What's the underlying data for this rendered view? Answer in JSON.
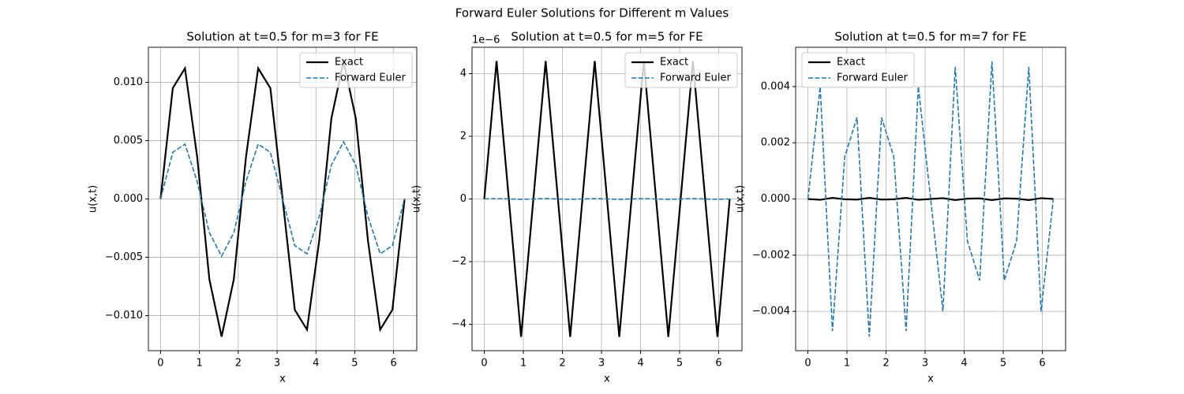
{
  "title": "Forward Euler Solutions for Different m Values",
  "chart_data": [
    {
      "type": "line",
      "title": "Solution at t=0.5 for m=3 for FE",
      "x_label": "x",
      "y_label": "u(x,t)",
      "x": [
        0,
        0.314,
        0.628,
        0.942,
        1.257,
        1.571,
        1.885,
        2.199,
        2.513,
        2.827,
        3.142,
        3.456,
        3.77,
        4.084,
        4.398,
        4.712,
        5.027,
        5.341,
        5.655,
        5.969,
        6.283
      ],
      "series": [
        {
          "name": "Exact",
          "color": "#000000",
          "style": "solid",
          "values": [
            0,
            0.0095,
            0.0112,
            0.0036,
            -0.0069,
            -0.0118,
            -0.0069,
            0.0036,
            0.0112,
            0.0095,
            0,
            -0.0095,
            -0.0112,
            -0.0036,
            0.0069,
            0.0118,
            0.0069,
            -0.0036,
            -0.0112,
            -0.0095,
            0
          ]
        },
        {
          "name": "Forward Euler",
          "color": "#1f77b4",
          "style": "dashed",
          "values": [
            0,
            0.004,
            0.0047,
            0.0015,
            -0.0029,
            -0.0049,
            -0.0029,
            0.0015,
            0.0047,
            0.004,
            0,
            -0.004,
            -0.0047,
            -0.0015,
            0.0029,
            0.0049,
            0.0029,
            -0.0015,
            -0.0047,
            -0.004,
            0
          ]
        }
      ],
      "xlim": [
        -0.314,
        6.597
      ],
      "xticks": [
        0,
        1,
        2,
        3,
        4,
        5,
        6
      ],
      "ylim": [
        -0.013,
        0.013
      ],
      "yticks": [
        {
          "value": -0.01,
          "label": "−0.010"
        },
        {
          "value": -0.005,
          "label": "−0.005"
        },
        {
          "value": 0,
          "label": "0.000"
        },
        0.005,
        {
          "value": 0.01,
          "label": "0.010"
        }
      ],
      "grid": true,
      "legend": "upper right"
    },
    {
      "type": "line",
      "title": "Solution at t=0.5 for m=5 for FE",
      "x_label": "x",
      "y_label": "u(x,t)",
      "y_offset": "1e−6",
      "x": [
        0,
        0.314,
        0.628,
        0.942,
        1.257,
        1.571,
        1.885,
        2.199,
        2.513,
        2.827,
        3.142,
        3.456,
        3.77,
        4.084,
        4.398,
        4.712,
        5.027,
        5.341,
        5.655,
        5.969,
        6.283
      ],
      "series": [
        {
          "name": "Exact",
          "color": "#000000",
          "style": "solid",
          "values": [
            0,
            4.4,
            0,
            -4.4,
            0,
            4.4,
            0,
            -4.4,
            0,
            4.4,
            0,
            -4.4,
            0,
            4.4,
            0,
            -4.4,
            0,
            4.4,
            0,
            -4.4,
            0
          ]
        },
        {
          "name": "Forward Euler",
          "color": "#1f77b4",
          "style": "dashed",
          "values": [
            0,
            0.01,
            0,
            -0.01,
            0,
            0.01,
            0,
            -0.01,
            0,
            0.01,
            0,
            -0.01,
            0,
            0.01,
            0,
            -0.01,
            0,
            0.01,
            0,
            -0.01,
            0
          ]
        }
      ],
      "xlim": [
        -0.314,
        6.597
      ],
      "xticks": [
        0,
        1,
        2,
        3,
        4,
        5,
        6
      ],
      "ylim": [
        -4.84,
        4.84
      ],
      "yticks": [
        {
          "value": -4,
          "label": "−4"
        },
        {
          "value": -2,
          "label": "−2"
        },
        0,
        2,
        4
      ],
      "grid": true,
      "legend": "upper right"
    },
    {
      "type": "line",
      "title": "Solution at t=0.5 for m=7 for FE",
      "x_label": "x",
      "y_label": "u(x,t)",
      "x": [
        0,
        0.314,
        0.628,
        0.942,
        1.257,
        1.571,
        1.885,
        2.199,
        2.513,
        2.827,
        3.142,
        3.456,
        3.77,
        4.084,
        4.398,
        4.712,
        5.027,
        5.341,
        5.655,
        5.969,
        6.283
      ],
      "series": [
        {
          "name": "Exact",
          "color": "#000000",
          "style": "solid",
          "values": [
            0,
            -3e-05,
            4e-05,
            -1e-05,
            -2e-05,
            4e-05,
            -2e-05,
            -1e-05,
            4e-05,
            -3e-05,
            0,
            3e-05,
            -4e-05,
            1e-05,
            2e-05,
            -4e-05,
            2e-05,
            1e-05,
            -4e-05,
            3e-05,
            0
          ]
        },
        {
          "name": "Forward Euler",
          "color": "#1f77b4",
          "style": "dashed",
          "values": [
            0,
            0.004,
            -0.0047,
            0.0015,
            0.0029,
            -0.0049,
            0.0029,
            0.0015,
            -0.0047,
            0.004,
            0,
            -0.004,
            0.0047,
            -0.0015,
            -0.0029,
            0.0049,
            -0.0029,
            -0.0015,
            0.0047,
            -0.004,
            0
          ]
        }
      ],
      "xlim": [
        -0.314,
        6.597
      ],
      "xticks": [
        0,
        1,
        2,
        3,
        4,
        5,
        6
      ],
      "ylim": [
        -0.0054,
        0.0054
      ],
      "yticks": [
        {
          "value": -0.004,
          "label": "−0.004"
        },
        {
          "value": -0.002,
          "label": "−0.002"
        },
        {
          "value": 0,
          "label": "0.000"
        },
        0.002,
        0.004
      ],
      "grid": true,
      "legend": "upper left"
    }
  ]
}
